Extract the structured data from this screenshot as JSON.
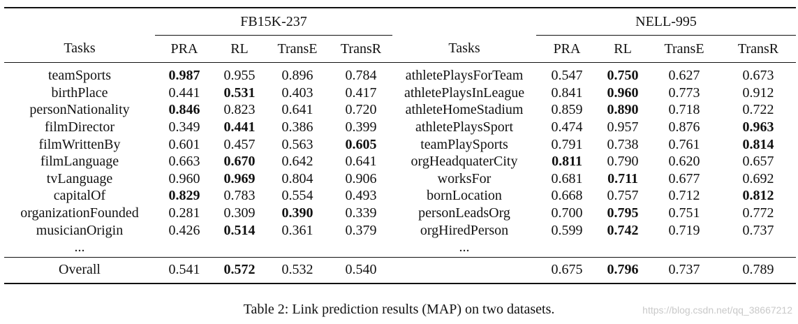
{
  "table": {
    "groups": [
      "FB15K-237",
      "NELL-995"
    ],
    "columns_left": [
      "Tasks",
      "PRA",
      "RL",
      "TransE",
      "TransR"
    ],
    "columns_right": [
      "Tasks",
      "PRA",
      "RL",
      "TransE",
      "TransR"
    ],
    "rows": [
      {
        "lt": "teamSports",
        "lv": [
          "0.987",
          "0.955",
          "0.896",
          "0.784"
        ],
        "lb": 0,
        "rt": "athletePlaysForTeam",
        "rv": [
          "0.547",
          "0.750",
          "0.627",
          "0.673"
        ],
        "rb": 1
      },
      {
        "lt": "birthPlace",
        "lv": [
          "0.441",
          "0.531",
          "0.403",
          "0.417"
        ],
        "lb": 1,
        "rt": "athletePlaysInLeague",
        "rv": [
          "0.841",
          "0.960",
          "0.773",
          "0.912"
        ],
        "rb": 1
      },
      {
        "lt": "personNationality",
        "lv": [
          "0.846",
          "0.823",
          "0.641",
          "0.720"
        ],
        "lb": 0,
        "rt": "athleteHomeStadium",
        "rv": [
          "0.859",
          "0.890",
          "0.718",
          "0.722"
        ],
        "rb": 1
      },
      {
        "lt": "filmDirector",
        "lv": [
          "0.349",
          "0.441",
          "0.386",
          "0.399"
        ],
        "lb": 1,
        "rt": "athletePlaysSport",
        "rv": [
          "0.474",
          "0.957",
          "0.876",
          "0.963"
        ],
        "rb": 3
      },
      {
        "lt": "filmWrittenBy",
        "lv": [
          "0.601",
          "0.457",
          "0.563",
          "0.605"
        ],
        "lb": 3,
        "rt": "teamPlaySports",
        "rv": [
          "0.791",
          "0.738",
          "0.761",
          "0.814"
        ],
        "rb": 3
      },
      {
        "lt": "filmLanguage",
        "lv": [
          "0.663",
          "0.670",
          "0.642",
          "0.641"
        ],
        "lb": 1,
        "rt": "orgHeadquaterCity",
        "rv": [
          "0.811",
          "0.790",
          "0.620",
          "0.657"
        ],
        "rb": 0
      },
      {
        "lt": "tvLanguage",
        "lv": [
          "0.960",
          "0.969",
          "0.804",
          "0.906"
        ],
        "lb": 1,
        "rt": "worksFor",
        "rv": [
          "0.681",
          "0.711",
          "0.677",
          "0.692"
        ],
        "rb": 1
      },
      {
        "lt": "capitalOf",
        "lv": [
          "0.829",
          "0.783",
          "0.554",
          "0.493"
        ],
        "lb": 0,
        "rt": "bornLocation",
        "rv": [
          "0.668",
          "0.757",
          "0.712",
          "0.812"
        ],
        "rb": 3
      },
      {
        "lt": "organizationFounded",
        "lv": [
          "0.281",
          "0.309",
          "0.390",
          "0.339"
        ],
        "lb": 2,
        "rt": "personLeadsOrg",
        "rv": [
          "0.700",
          "0.795",
          "0.751",
          "0.772"
        ],
        "rb": 1
      },
      {
        "lt": "musicianOrigin",
        "lv": [
          "0.426",
          "0.514",
          "0.361",
          "0.379"
        ],
        "lb": 1,
        "rt": "orgHiredPerson",
        "rv": [
          "0.599",
          "0.742",
          "0.719",
          "0.737"
        ],
        "rb": 1
      }
    ],
    "ellipsis": "...",
    "overall": {
      "label": "Overall",
      "left": [
        "0.541",
        "0.572",
        "0.532",
        "0.540"
      ],
      "lb": 1,
      "right": [
        "0.675",
        "0.796",
        "0.737",
        "0.789"
      ],
      "rb": 1
    }
  },
  "caption": "Table 2: Link prediction results (MAP) on two datasets.",
  "watermark": "https://blog.csdn.net/qq_38667212"
}
